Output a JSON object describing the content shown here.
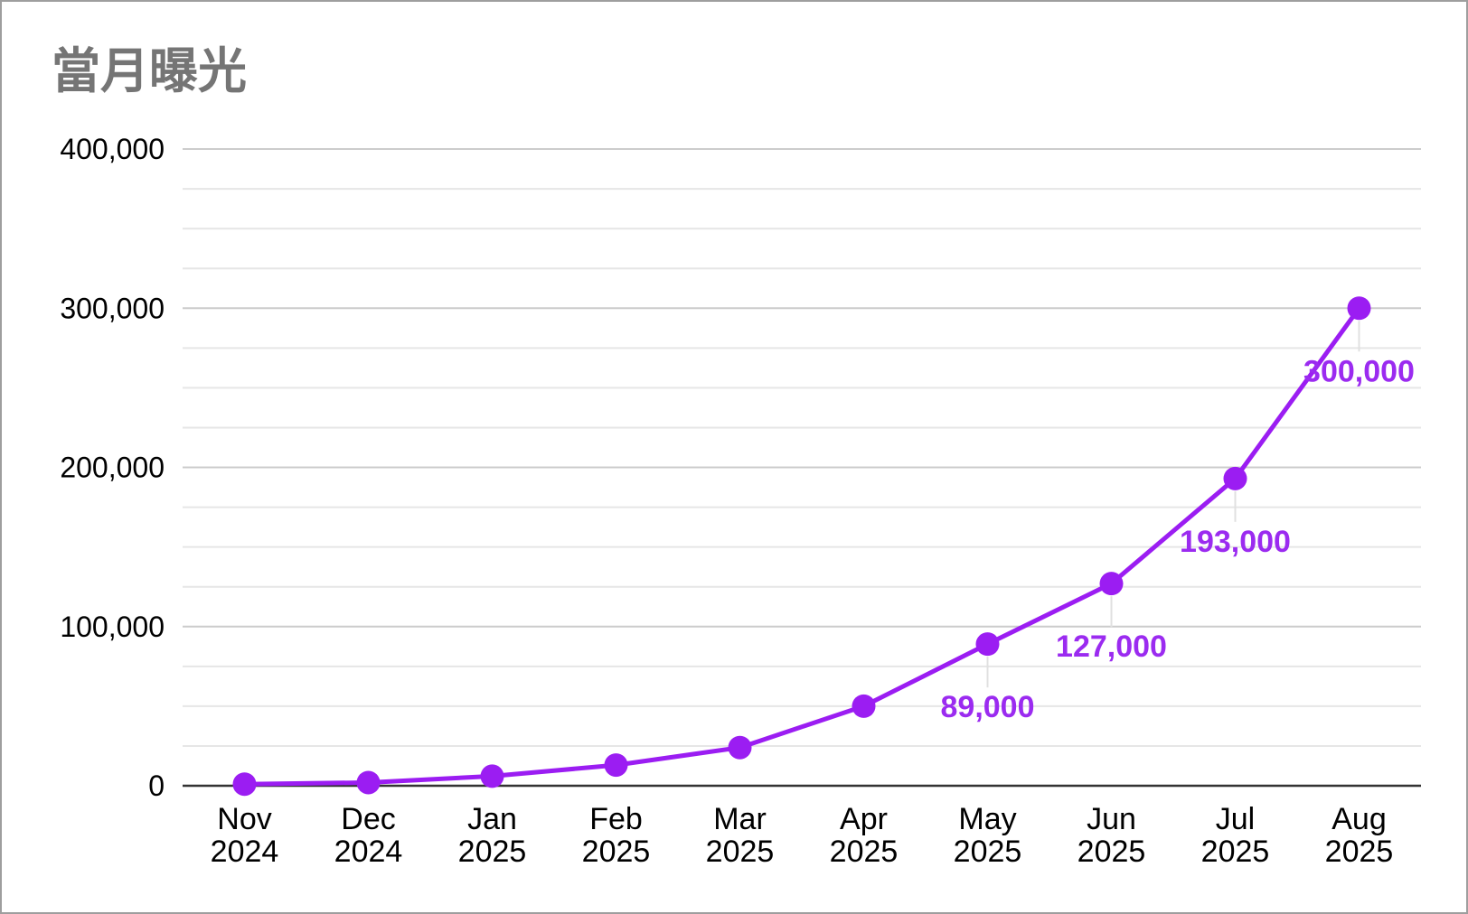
{
  "chart_data": {
    "type": "line",
    "title": "當月曝光",
    "xlabel": "",
    "ylabel": "",
    "categories": [
      [
        "Nov",
        "2024"
      ],
      [
        "Dec",
        "2024"
      ],
      [
        "Jan",
        "2025"
      ],
      [
        "Feb",
        "2025"
      ],
      [
        "Mar",
        "2025"
      ],
      [
        "Apr",
        "2025"
      ],
      [
        "May",
        "2025"
      ],
      [
        "Jun",
        "2025"
      ],
      [
        "Jul",
        "2025"
      ],
      [
        "Aug",
        "2025"
      ]
    ],
    "series": [
      {
        "values": [
          1000,
          2000,
          6000,
          13000,
          24000,
          50000,
          89000,
          127000,
          193000,
          300000
        ],
        "data_labels": [
          "",
          "",
          "",
          "",
          "",
          "",
          "89,000",
          "127,000",
          "193,000",
          "300,000"
        ]
      }
    ],
    "ylim": [
      0,
      400000
    ],
    "yticks": [
      0,
      100000,
      200000,
      300000,
      400000
    ],
    "ytick_labels": [
      "0",
      "100,000",
      "200,000",
      "300,000",
      "400,000"
    ],
    "minor_gridlines_per_major": 3,
    "grid": true,
    "legend": "none",
    "colors": {
      "series": "#9b1df2",
      "data_label": "#9b2bf0",
      "title": "#757575",
      "gridline": "#d9d9d9",
      "baseline": "#333333"
    }
  }
}
